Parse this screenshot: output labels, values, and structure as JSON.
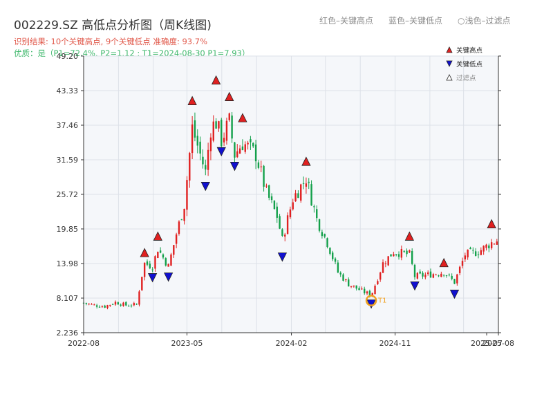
{
  "header": {
    "title": "002229.SZ 高低点分析图（周K线图)",
    "result_text": "识别结果: 10个关键高点, 9个关键低点   准确度: 93.7%",
    "quality_text": "优质：是（P1=72.4%, P2=1.12 ; T1=2024-08-30 P1=7.93）"
  },
  "top_legend": {
    "red_text": "红色–关键高点",
    "blue_text": "蓝色–关键低点",
    "faded_text": "○浅色–过滤点"
  },
  "colors": {
    "up": "#e02020",
    "down": "#13a04a",
    "key_high": "#e02020",
    "key_low": "#1010d0",
    "marker_circle": "#f0a020",
    "grid": "#dde1e8",
    "plot_bg": "#f5f7fa"
  },
  "chart_data": {
    "type": "candlestick",
    "yticks": [
      "2.236",
      "8.107",
      "13.98",
      "19.85",
      "25.72",
      "31.59",
      "37.46",
      "43.33",
      "49.20"
    ],
    "ylim": [
      2.236,
      49.2
    ],
    "xticks": [
      {
        "date": "2022-08",
        "label": "2022-08"
      },
      {
        "date": "2023-05",
        "label": "2023-05"
      },
      {
        "date": "2024-02",
        "label": "2024-02"
      },
      {
        "date": "2024-11",
        "label": "2024-11"
      },
      {
        "date": "2025-07",
        "label": "2025-07"
      },
      {
        "date": "2025-08",
        "label": "2025-08"
      }
    ],
    "xrange": [
      "2022-08-01",
      "2025-08-01"
    ],
    "legend": [
      {
        "symbol": "high",
        "label": "关键高点"
      },
      {
        "symbol": "low",
        "label": "关键低点"
      },
      {
        "symbol": "filtered",
        "label": "过滤点"
      }
    ],
    "highs": [
      {
        "date": "2023-01-09",
        "value": 15.0
      },
      {
        "date": "2023-02-13",
        "value": 17.8
      },
      {
        "date": "2023-05-15",
        "value": 40.8
      },
      {
        "date": "2023-07-17",
        "value": 44.3
      },
      {
        "date": "2023-08-21",
        "value": 41.5
      },
      {
        "date": "2023-09-25",
        "value": 37.9
      },
      {
        "date": "2024-03-11",
        "value": 30.5
      },
      {
        "date": "2024-12-09",
        "value": 17.8
      },
      {
        "date": "2025-03-10",
        "value": 13.3
      },
      {
        "date": "2025-07-14",
        "value": 19.9
      }
    ],
    "lows": [
      {
        "date": "2023-01-30",
        "value": 12.4
      },
      {
        "date": "2023-03-13",
        "value": 12.5
      },
      {
        "date": "2023-06-19",
        "value": 27.9
      },
      {
        "date": "2023-07-31",
        "value": 33.8
      },
      {
        "date": "2023-09-04",
        "value": 31.3
      },
      {
        "date": "2024-01-08",
        "value": 15.9
      },
      {
        "date": "2024-08-30",
        "value": 7.93
      },
      {
        "date": "2024-12-23",
        "value": 11.0
      },
      {
        "date": "2025-04-07",
        "value": 9.6
      }
    ],
    "marked_low": {
      "date": "2024-08-30",
      "value": 7.93,
      "label": "T1"
    },
    "trend_anchors": [
      [
        "2022-08-01",
        7.3
      ],
      [
        "2022-08-29",
        6.9
      ],
      [
        "2022-09-26",
        6.7
      ],
      [
        "2022-10-24",
        7.4
      ],
      [
        "2022-11-21",
        6.9
      ],
      [
        "2022-12-19",
        7.0
      ],
      [
        "2023-01-02",
        12.0
      ],
      [
        "2023-01-09",
        14.0
      ],
      [
        "2023-01-30",
        13.5
      ],
      [
        "2023-02-13",
        16.5
      ],
      [
        "2023-03-13",
        13.5
      ],
      [
        "2023-04-03",
        19.0
      ],
      [
        "2023-04-24",
        24.0
      ],
      [
        "2023-05-15",
        37.0
      ],
      [
        "2023-05-29",
        34.0
      ],
      [
        "2023-06-19",
        29.5
      ],
      [
        "2023-07-03",
        37.0
      ],
      [
        "2023-07-17",
        38.0
      ],
      [
        "2023-07-31",
        35.0
      ],
      [
        "2023-08-21",
        38.0
      ],
      [
        "2023-09-04",
        32.5
      ],
      [
        "2023-09-25",
        34.5
      ],
      [
        "2023-10-30",
        32.5
      ],
      [
        "2023-11-27",
        26.0
      ],
      [
        "2023-12-25",
        22.0
      ],
      [
        "2024-01-08",
        18.0
      ],
      [
        "2024-02-05",
        25.0
      ],
      [
        "2024-03-11",
        28.5
      ],
      [
        "2024-04-08",
        21.5
      ],
      [
        "2024-05-06",
        17.5
      ],
      [
        "2024-06-03",
        12.5
      ],
      [
        "2024-07-01",
        10.5
      ],
      [
        "2024-08-05",
        9.3
      ],
      [
        "2024-08-30",
        8.6
      ],
      [
        "2024-09-30",
        14.0
      ],
      [
        "2024-10-28",
        16.0
      ],
      [
        "2024-12-09",
        15.5
      ],
      [
        "2024-12-23",
        11.8
      ],
      [
        "2025-01-20",
        12.0
      ],
      [
        "2025-03-10",
        12.5
      ],
      [
        "2025-04-07",
        10.8
      ],
      [
        "2025-05-05",
        15.5
      ],
      [
        "2025-06-09",
        16.0
      ],
      [
        "2025-07-14",
        17.5
      ],
      [
        "2025-08-01",
        18.0
      ]
    ]
  }
}
